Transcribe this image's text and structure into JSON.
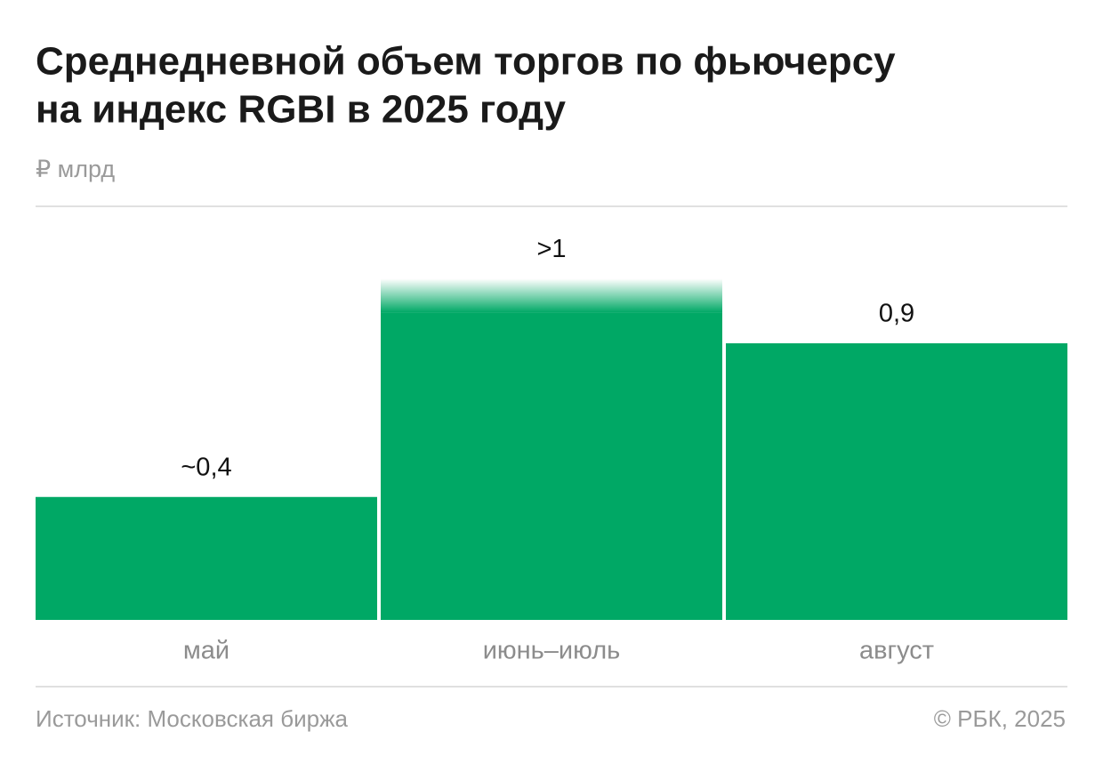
{
  "chart_data": {
    "type": "bar",
    "title": [
      "Среднедневной объем торгов по фьючерсу",
      "на индекс RGBI в 2025 году"
    ],
    "subtitle": "₽ млрд",
    "categories": [
      "май",
      "июнь–июль",
      "август"
    ],
    "values": [
      0.4,
      1,
      0.9
    ],
    "value_labels": [
      "~0,4",
      ">1",
      "0,9"
    ],
    "color": "#00a865",
    "source": "Источник: Московская биржа",
    "credit": "© РБК, 2025"
  }
}
